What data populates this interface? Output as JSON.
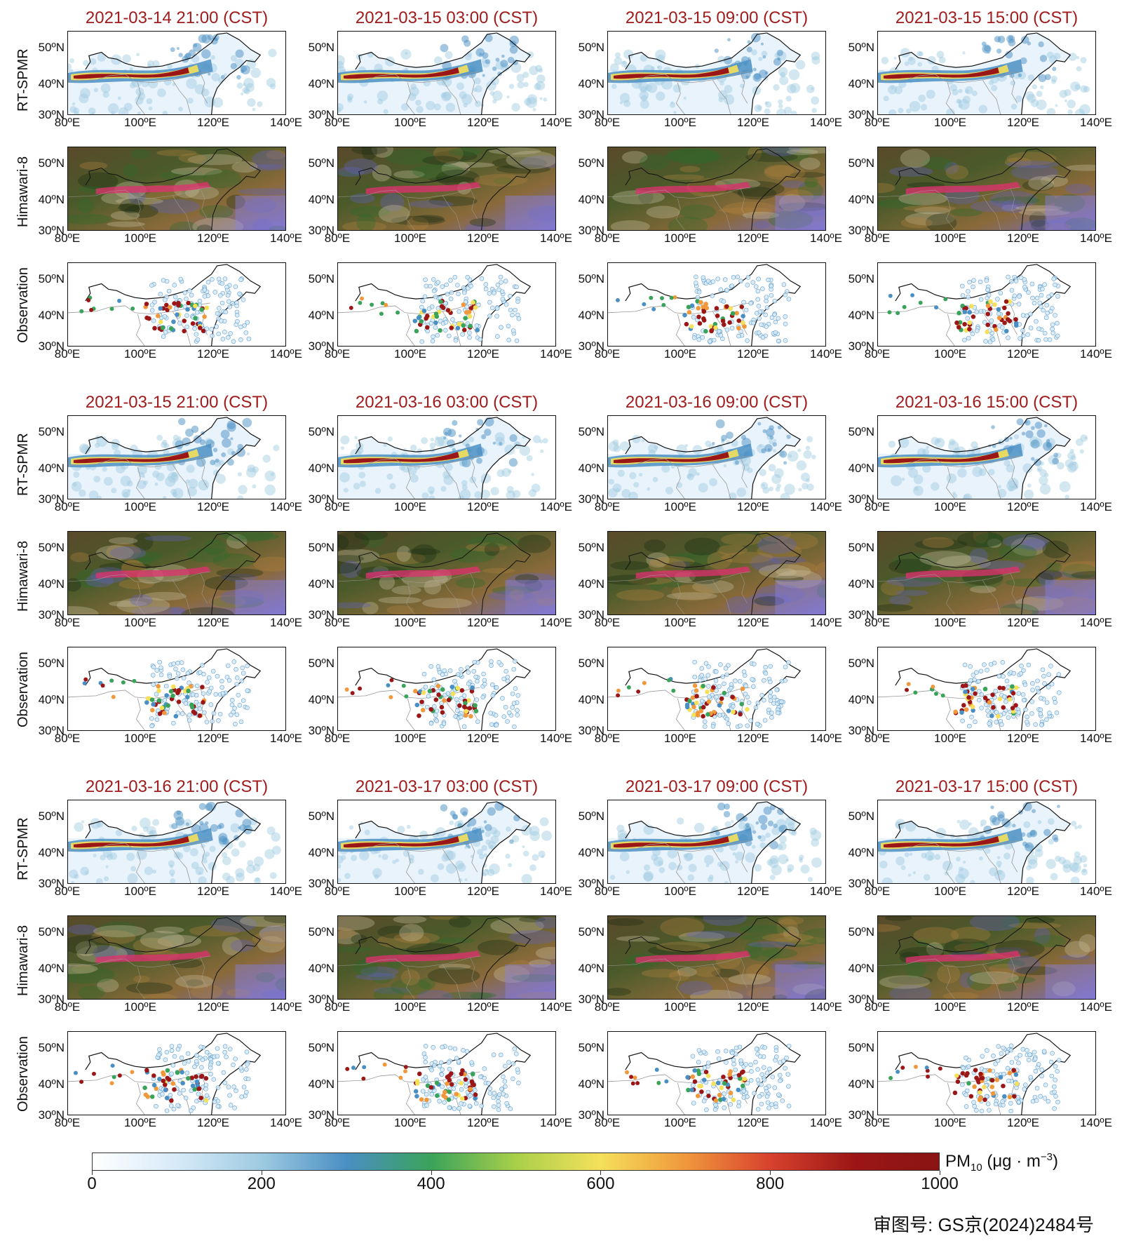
{
  "rows": [
    "RT-SPMR",
    "Himawari-8",
    "Observation"
  ],
  "groups": [
    {
      "times": [
        "2021-03-14 21:00 (CST)",
        "2021-03-15 03:00 (CST)",
        "2021-03-15 09:00 (CST)",
        "2021-03-15 15:00 (CST)"
      ]
    },
    {
      "times": [
        "2021-03-15 21:00 (CST)",
        "2021-03-16 03:00 (CST)",
        "2021-03-16 09:00 (CST)",
        "2021-03-16 15:00 (CST)"
      ]
    },
    {
      "times": [
        "2021-03-16 21:00 (CST)",
        "2021-03-17 03:00 (CST)",
        "2021-03-17 09:00 (CST)",
        "2021-03-17 15:00 (CST)"
      ]
    }
  ],
  "axes": {
    "lat_labels": [
      "50ºN",
      "40ºN",
      "30ºN"
    ],
    "lon_labels": [
      "80ºE",
      "100ºE",
      "120ºE",
      "140ºE"
    ]
  },
  "colorbar": {
    "ticks": [
      "0",
      "200",
      "400",
      "600",
      "800",
      "1000"
    ],
    "unit_main": "PM",
    "unit_sub": "10",
    "unit_rest": " (μg · m",
    "unit_sup": "−3",
    "unit_close": ")",
    "colors": [
      "#ffffff",
      "#d6eaf8",
      "#9ecae1",
      "#4a8fc4",
      "#3aa35a",
      "#a8d04a",
      "#f5e05a",
      "#f0983c",
      "#d8422e",
      "#9b1616",
      "#8b1414"
    ]
  },
  "approval": "审图号: GS京(2024)2484号"
}
